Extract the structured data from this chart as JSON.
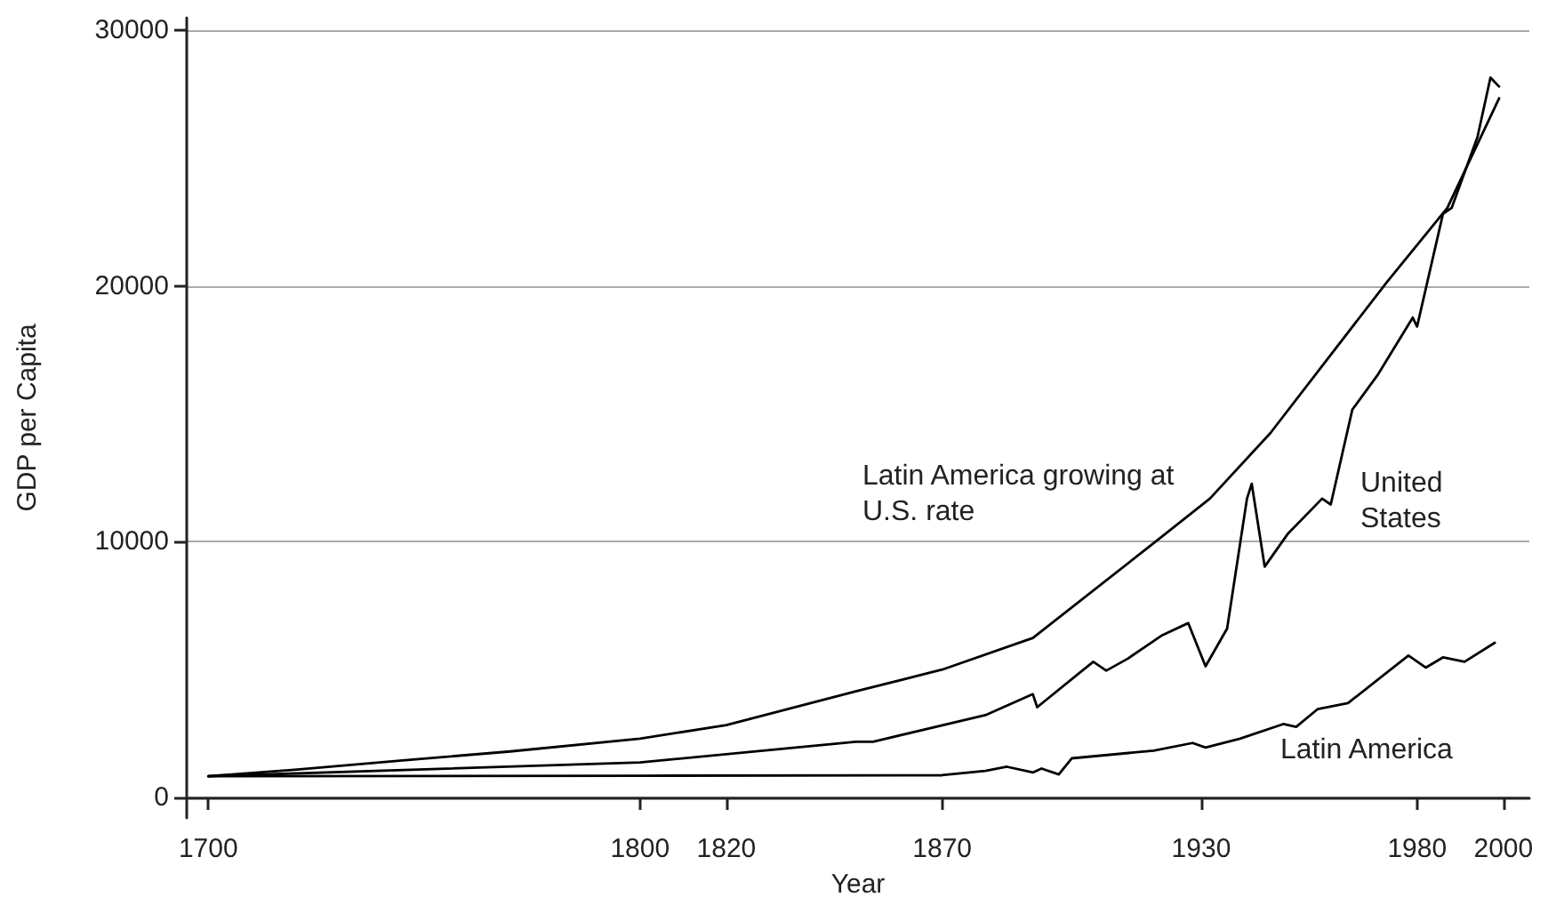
{
  "chart_data": {
    "type": "line",
    "xlabel": "Year",
    "ylabel": "GDP per Capita",
    "xlim": [
      1695,
      2006
    ],
    "ylim": [
      -800,
      30500
    ],
    "xticks": [
      1700,
      1800,
      1820,
      1870,
      1930,
      1980,
      2000
    ],
    "yticks": [
      0,
      10000,
      20000,
      30000
    ],
    "grid": "y",
    "legend": false,
    "marker": "none",
    "line_style": "solid",
    "series": [
      {
        "name": "Latin America growing at U.S. rate",
        "color": "#000000",
        "x": [
          1700,
          1720,
          1745,
          1770,
          1800,
          1820,
          1850,
          1870,
          1891,
          1919,
          1932,
          1946,
          1973,
          1987,
          1999
        ],
        "values": [
          830,
          1080,
          1450,
          1800,
          2300,
          2830,
          4150,
          5000,
          6240,
          9950,
          11690,
          14250,
          20160,
          23060,
          27350
        ]
      },
      {
        "name": "United States",
        "color": "#000000",
        "x": [
          1700,
          1800,
          1850,
          1854,
          1880,
          1891,
          1892,
          1905,
          1908,
          1913,
          1921,
          1927,
          1931,
          1936,
          1940.6,
          1941.7,
          1944.7,
          1950,
          1958,
          1960,
          1965,
          1971,
          1979,
          1980,
          1986,
          1988,
          1994,
          1997,
          1999
        ],
        "values": [
          830,
          1370,
          2180,
          2180,
          3220,
          4040,
          3530,
          5310,
          4960,
          5430,
          6350,
          6820,
          5130,
          6610,
          11690,
          12270,
          9030,
          10300,
          11690,
          11460,
          15170,
          16560,
          18770,
          18420,
          22830,
          23060,
          25840,
          28160,
          27810
        ]
      },
      {
        "name": "Latin America",
        "color": "#000000",
        "x": [
          1700,
          1800,
          1870,
          1880,
          1885,
          1891,
          1893,
          1897,
          1900,
          1919,
          1928,
          1931,
          1939,
          1949,
          1952,
          1957,
          1964,
          1978,
          1982,
          1986,
          1991,
          1998
        ],
        "values": [
          830,
          850,
          870,
          1040,
          1200,
          975,
          1130,
          900,
          1530,
          1830,
          2130,
          1950,
          2300,
          2870,
          2760,
          3460,
          3690,
          5550,
          5080,
          5480,
          5310,
          6050
        ]
      }
    ]
  }
}
